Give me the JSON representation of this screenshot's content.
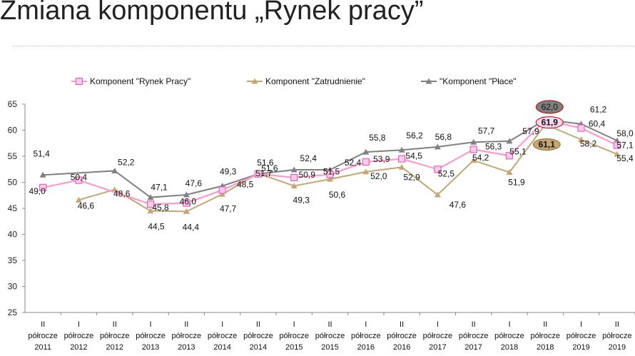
{
  "title": "Zmiana komponentu „Rynek pracy”",
  "chart_data": {
    "type": "line",
    "categories": [
      [
        "II",
        "półrocze",
        "2011"
      ],
      [
        "I",
        "półrocze",
        "2012"
      ],
      [
        "II",
        "półrocze",
        "2012"
      ],
      [
        "I",
        "półrocze",
        "2013"
      ],
      [
        "II",
        "półrocze",
        "2013"
      ],
      [
        "I",
        "półrocze",
        "2014"
      ],
      [
        "II",
        "półrocze",
        "2014"
      ],
      [
        "I",
        "półrocze",
        "2015"
      ],
      [
        "II",
        "półrocze",
        "2015"
      ],
      [
        "I",
        "półrocze",
        "2016"
      ],
      [
        "II",
        "półrocze",
        "2016"
      ],
      [
        "I",
        "półrocze",
        "2017"
      ],
      [
        "II",
        "półrocze",
        "2017"
      ],
      [
        "I",
        "półrocze",
        "2018"
      ],
      [
        "II",
        "półrocze",
        "2018"
      ],
      [
        "I",
        "półrocze",
        "2019"
      ],
      [
        "II",
        "półrocze",
        "2019"
      ]
    ],
    "ylim": [
      25,
      65
    ],
    "yticks": [
      25,
      30,
      35,
      40,
      45,
      50,
      55,
      60,
      65
    ],
    "legend_position": "top",
    "grid": false,
    "series": [
      {
        "name": "Komponent \"Rynek Pracy\"",
        "color": "#ff99cc",
        "marker": "square",
        "values": [
          49.0,
          50.4,
          null,
          45.8,
          46.0,
          48.5,
          51.6,
          50.9,
          51.5,
          53.9,
          54.5,
          52.5,
          56.3,
          55.1,
          61.9,
          60.4,
          57.1
        ],
        "labels": [
          "49,0",
          "50,4",
          null,
          "45,8",
          "46,0",
          "48,5",
          "51,6",
          "50,9",
          "51,5",
          "53,9",
          "54,5",
          "52,5",
          "56,3",
          "55,1",
          "61,9",
          "60,4",
          "57,1"
        ]
      },
      {
        "name": "Komponent \"Zatrudnienie\"",
        "color": "#c4a672",
        "marker": "triangle",
        "values": [
          null,
          46.6,
          48.6,
          44.5,
          44.4,
          47.7,
          51.7,
          49.3,
          50.6,
          52.0,
          52.9,
          47.6,
          54.2,
          51.9,
          61.1,
          58.2,
          55.4
        ],
        "labels": [
          null,
          "46,6",
          "48,6",
          "44,5",
          "44,4",
          "47,7",
          "51,7",
          "49,3",
          "50,6",
          "52,0",
          "52,9",
          "47,6",
          "54,2",
          "51,9",
          "61,1",
          "58,2",
          "55,4"
        ]
      },
      {
        "name": "\"Komponent \"Płace\"",
        "color": "#808080",
        "marker": "triangle",
        "values": [
          51.4,
          null,
          52.2,
          47.1,
          47.6,
          49.3,
          51.6,
          52.4,
          52.4,
          55.8,
          56.2,
          56.8,
          57.7,
          57.9,
          62.0,
          61.2,
          58.0
        ],
        "labels": [
          "51,4",
          null,
          "52,2",
          "47,1",
          "47,6",
          "49,3",
          "51,6",
          "52,4",
          "52,4",
          "55,8",
          "56,2",
          "56,8",
          "57,7",
          "57,9",
          "62,0",
          "61,2",
          "58,0"
        ]
      }
    ]
  }
}
